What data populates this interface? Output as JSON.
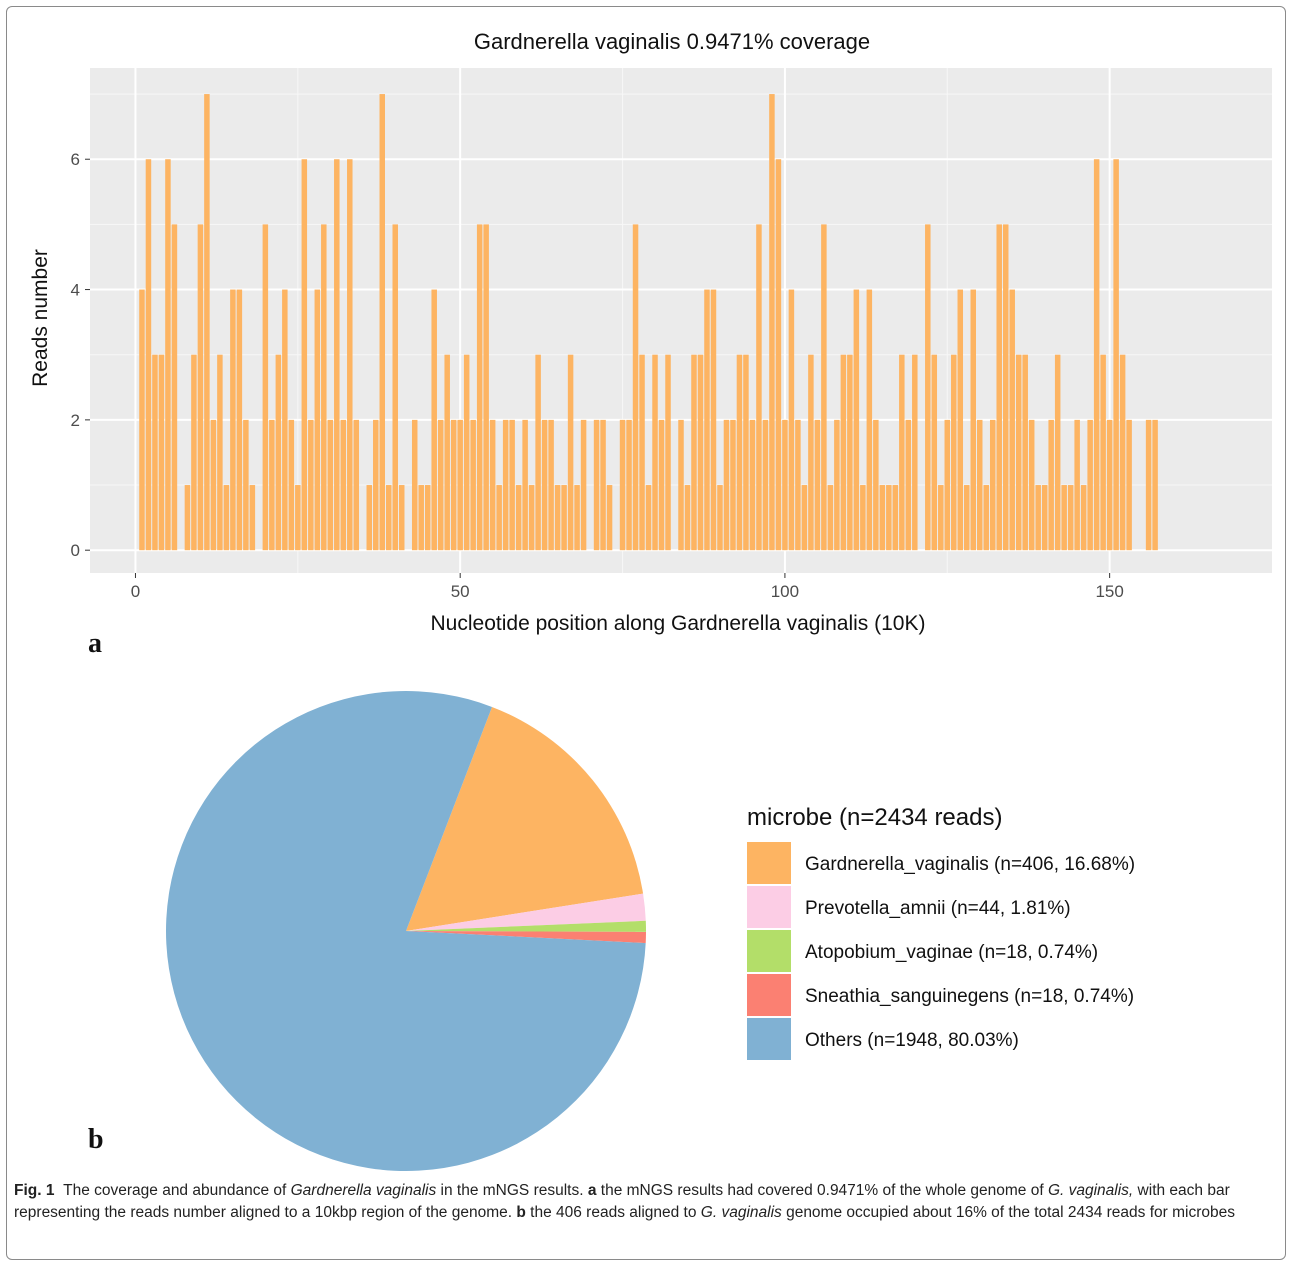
{
  "chart_data": [
    {
      "type": "bar",
      "title": "Gardnerella vaginalis 0.9471% coverage",
      "xlabel": "Nucleotide position along Gardnerella vaginalis (10K)",
      "ylabel": "Reads number",
      "xlim": [
        -7,
        175
      ],
      "ylim": [
        -0.35,
        7.4
      ],
      "xticks": [
        0,
        50,
        100,
        150
      ],
      "yticks": [
        0,
        2,
        4,
        6
      ],
      "grid": true,
      "panel_background": "#ebebeb",
      "bar_color": "#fdb462",
      "panel_label": "a",
      "x": [
        1,
        2,
        3,
        4,
        5,
        6,
        7,
        8,
        9,
        10,
        11,
        12,
        13,
        14,
        15,
        16,
        17,
        18,
        19,
        20,
        21,
        22,
        23,
        24,
        25,
        26,
        27,
        28,
        29,
        30,
        31,
        32,
        33,
        34,
        35,
        36,
        37,
        38,
        39,
        40,
        41,
        42,
        43,
        44,
        45,
        46,
        47,
        48,
        49,
        50,
        51,
        52,
        53,
        54,
        55,
        56,
        57,
        58,
        59,
        60,
        61,
        62,
        63,
        64,
        65,
        66,
        67,
        68,
        69,
        70,
        71,
        72,
        73,
        74,
        75,
        76,
        77,
        78,
        79,
        80,
        81,
        82,
        83,
        84,
        85,
        86,
        87,
        88,
        89,
        90,
        91,
        92,
        93,
        94,
        95,
        96,
        97,
        98,
        99,
        100,
        101,
        102,
        103,
        104,
        105,
        106,
        107,
        108,
        109,
        110,
        111,
        112,
        113,
        114,
        115,
        116,
        117,
        118,
        119,
        120,
        121,
        122,
        123,
        124,
        125,
        126,
        127,
        128,
        129,
        130,
        131,
        132,
        133,
        134,
        135,
        136,
        137,
        138,
        139,
        140,
        141,
        142,
        143,
        144,
        145,
        146,
        147,
        148,
        149,
        150,
        151,
        152,
        153,
        154,
        155,
        156,
        157,
        158,
        159,
        160,
        161,
        162,
        163,
        164,
        165,
        166,
        167,
        168
      ],
      "values": [
        4,
        6,
        3,
        3,
        6,
        5,
        0,
        1,
        3,
        5,
        7,
        2,
        3,
        1,
        4,
        4,
        2,
        1,
        0,
        5,
        2,
        3,
        4,
        2,
        1,
        6,
        2,
        4,
        5,
        2,
        6,
        2,
        6,
        2,
        0,
        1,
        2,
        7,
        1,
        5,
        1,
        0,
        2,
        1,
        1,
        4,
        2,
        3,
        2,
        2,
        3,
        2,
        5,
        5,
        2,
        1,
        2,
        2,
        1,
        2,
        1,
        3,
        2,
        2,
        1,
        1,
        3,
        1,
        2,
        0,
        2,
        2,
        1,
        0,
        2,
        2,
        5,
        3,
        1,
        3,
        2,
        3,
        0,
        2,
        1,
        3,
        3,
        4,
        4,
        1,
        2,
        2,
        3,
        3,
        2,
        5,
        2,
        7,
        6,
        2,
        4,
        2,
        1,
        3,
        2,
        5,
        1,
        2,
        3,
        3,
        4,
        1,
        4,
        2,
        1,
        1,
        1,
        3,
        2,
        3,
        0,
        5,
        3,
        1,
        2,
        3,
        4,
        1,
        4,
        2,
        1,
        2,
        5,
        5,
        4,
        3,
        3,
        2,
        1,
        1,
        2,
        3,
        1,
        1,
        2,
        1,
        2,
        6,
        3,
        2,
        6,
        3,
        2,
        0,
        0,
        2,
        2,
        0,
        0,
        0,
        0,
        0,
        0,
        0,
        0,
        0,
        0,
        0
      ]
    },
    {
      "type": "pie",
      "panel_label": "b",
      "legend_title": "microbe (n=2434 reads)",
      "legend_position": "right",
      "slices": [
        {
          "label": "Gardnerella_vaginalis (n=406, 16.68%)",
          "value": 406,
          "color": "#fdb462"
        },
        {
          "label": "Prevotella_amnii (n=44, 1.81%)",
          "value": 44,
          "color": "#fccde5"
        },
        {
          "label": "Atopobium_vaginae (n=18, 0.74%)",
          "value": 18,
          "color": "#b3de69"
        },
        {
          "label": "Sneathia_sanguinegens (n=18, 0.74%)",
          "value": 18,
          "color": "#fb8072"
        },
        {
          "label": "Others (n=1948, 80.03%)",
          "value": 1948,
          "color": "#80b1d3"
        }
      ]
    }
  ],
  "caption": {
    "fig_label": "Fig. 1",
    "t1": "The coverage and abundance of ",
    "i1": "Gardnerella vaginalis",
    "t2": " in the mNGS results. ",
    "b1": "a",
    "t3": " the mNGS results had covered 0.9471% of the whole genome of ",
    "i2": "G. vaginalis,",
    "t4": " with each bar representing the reads number aligned to a 10kbp region of the genome. ",
    "b2": "b",
    "t5": " the 406 reads aligned to ",
    "i3": "G. vaginalis",
    "t6": " genome occupied about 16% of the total 2434 reads for microbes"
  }
}
